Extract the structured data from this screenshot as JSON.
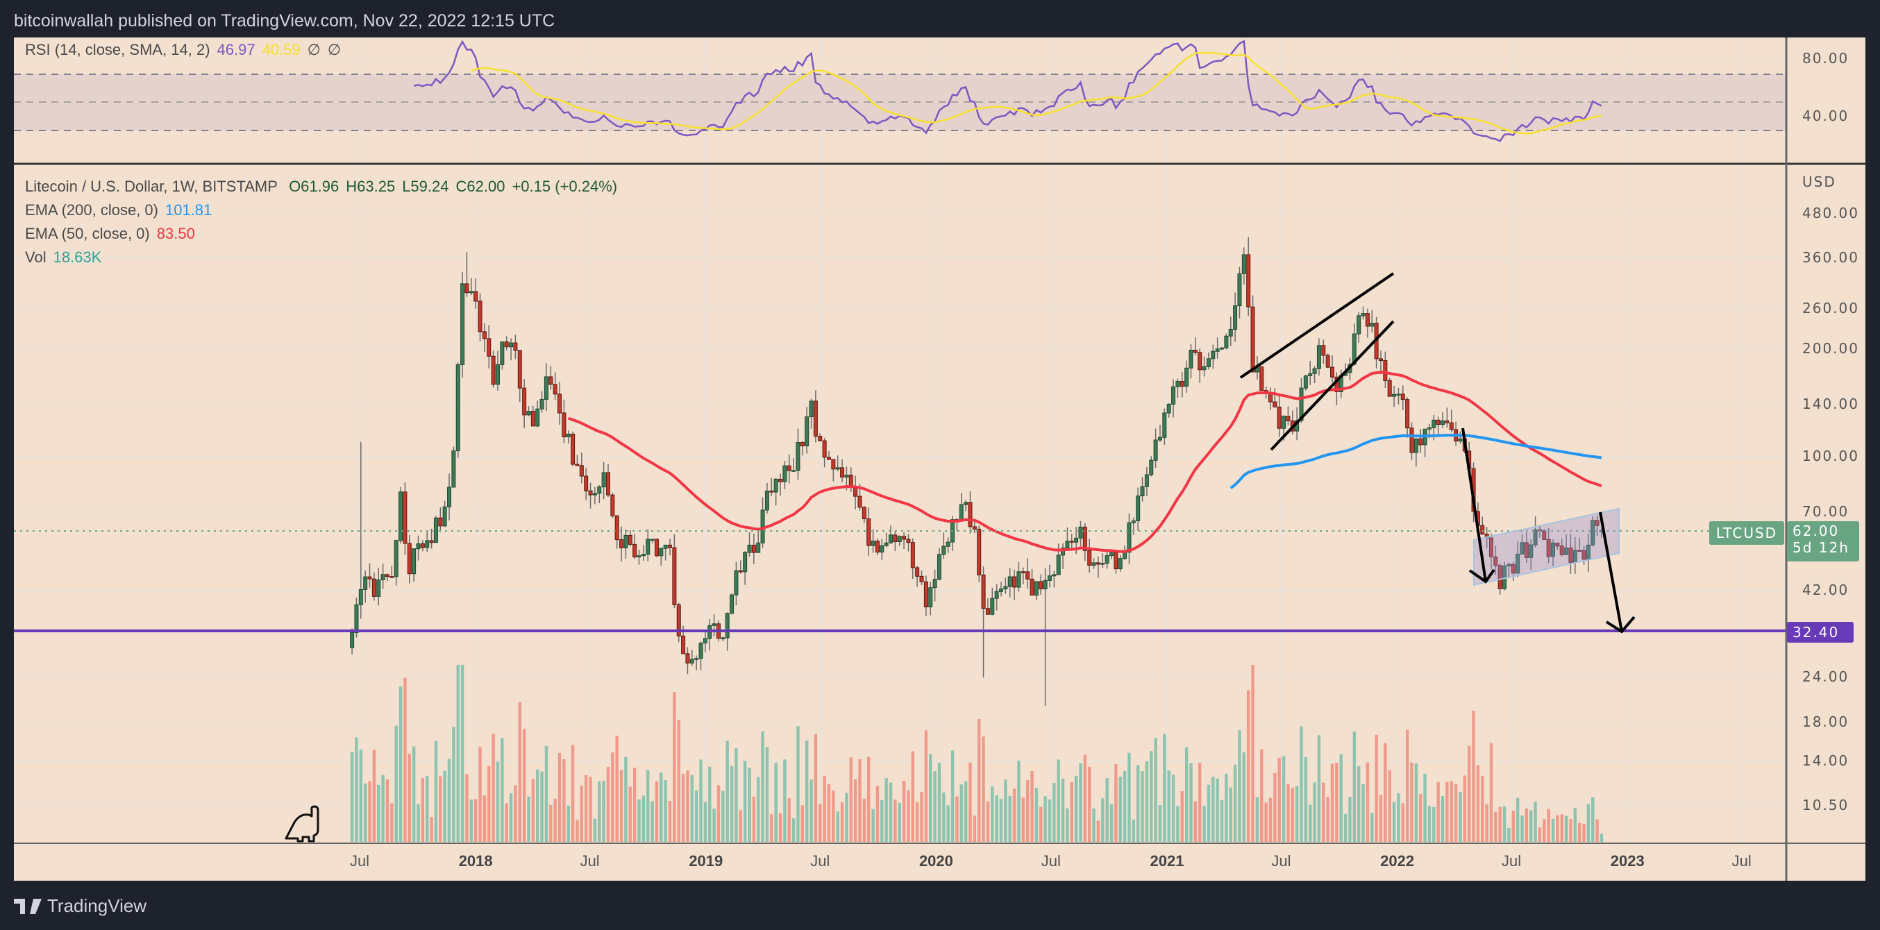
{
  "header": {
    "published": "bitcoinwallah published on TradingView.com, Nov 22, 2022 12:15 UTC"
  },
  "rsi_legend": {
    "label": "RSI (14, close, SMA, 14, 2)",
    "rsi": "46.97",
    "sma": "40.59",
    "na1": "∅",
    "na2": "∅"
  },
  "legend": {
    "symbol": "Litecoin / U.S. Dollar, 1W, BITSTAMP",
    "open": "O61.96",
    "high": "H63.25",
    "low": "L59.24",
    "close": "C62.00",
    "change": "+0.15 (+0.24%)",
    "ema200_label": "EMA (200, close, 0)",
    "ema200_value": "101.81",
    "ema50_label": "EMA (50, close, 0)",
    "ema50_value": "83.50",
    "vol_label": "Vol",
    "vol_value": "18.63K"
  },
  "rsi_axis": [
    "80.00",
    "40.00"
  ],
  "price_axis": {
    "currency": "USD",
    "labels": [
      "480.00",
      "360.00",
      "260.00",
      "200.00",
      "140.00",
      "100.00",
      "70.00",
      "42.00",
      "24.00",
      "18.00",
      "14.00",
      "10.50"
    ]
  },
  "badges": {
    "symbol": "LTCUSD",
    "price": "62.00",
    "countdown": "5d 12h",
    "support": "32.40"
  },
  "time_axis": [
    {
      "label": "Jul",
      "bold": false
    },
    {
      "label": "2018",
      "bold": true
    },
    {
      "label": "Jul",
      "bold": false
    },
    {
      "label": "2019",
      "bold": true
    },
    {
      "label": "Jul",
      "bold": false
    },
    {
      "label": "2020",
      "bold": true
    },
    {
      "label": "Jul",
      "bold": false
    },
    {
      "label": "2021",
      "bold": true
    },
    {
      "label": "Jul",
      "bold": false
    },
    {
      "label": "2022",
      "bold": true
    },
    {
      "label": "Jul",
      "bold": false
    },
    {
      "label": "2023",
      "bold": true
    },
    {
      "label": "Jul",
      "bold": false
    }
  ],
  "footer": {
    "brand": "TradingView"
  },
  "colors": {
    "up": "#3d7a55",
    "down": "#c4392b",
    "vol_up": "#8cc4b0",
    "vol_down": "#ef9a8a",
    "ema200": "#2196f3",
    "ema50": "#f23645",
    "rsi": "#7e57c2",
    "rsi_sma": "#f5e12e",
    "support": "#673ab7",
    "last": "#6aa583"
  },
  "chart_data": {
    "type": "candlestick",
    "title": "Litecoin / U.S. Dollar, 1W, BITSTAMP",
    "scale": "log",
    "ylim": [
      9,
      520
    ],
    "xlim": [
      "2017-05-01",
      "2023-08-01"
    ],
    "support_level": 32.4,
    "last_candle": {
      "open": 61.96,
      "high": 63.25,
      "low": 59.24,
      "close": 62.0
    },
    "close_anchors": [
      [
        "2017-06-19",
        30
      ],
      [
        "2017-07-03",
        45
      ],
      [
        "2017-07-24",
        42
      ],
      [
        "2017-08-21",
        48
      ],
      [
        "2017-09-04",
        75
      ],
      [
        "2017-09-18",
        50
      ],
      [
        "2017-10-16",
        58
      ],
      [
        "2017-11-13",
        70
      ],
      [
        "2017-11-27",
        100
      ],
      [
        "2017-12-11",
        320
      ],
      [
        "2017-12-25",
        280
      ],
      [
        "2018-01-08",
        240
      ],
      [
        "2018-01-29",
        160
      ],
      [
        "2018-02-12",
        220
      ],
      [
        "2018-03-05",
        190
      ],
      [
        "2018-03-19",
        140
      ],
      [
        "2018-04-02",
        120
      ],
      [
        "2018-04-23",
        165
      ],
      [
        "2018-05-21",
        120
      ],
      [
        "2018-06-25",
        80
      ],
      [
        "2018-07-23",
        85
      ],
      [
        "2018-08-13",
        58
      ],
      [
        "2018-09-10",
        55
      ],
      [
        "2018-10-01",
        58
      ],
      [
        "2018-11-05",
        52
      ],
      [
        "2018-11-19",
        32
      ],
      [
        "2018-12-10",
        26
      ],
      [
        "2019-01-07",
        33
      ],
      [
        "2019-01-28",
        31
      ],
      [
        "2019-02-18",
        45
      ],
      [
        "2019-03-25",
        60
      ],
      [
        "2019-04-08",
        80
      ],
      [
        "2019-05-13",
        90
      ],
      [
        "2019-06-17",
        135
      ],
      [
        "2019-07-08",
        100
      ],
      [
        "2019-08-05",
        90
      ],
      [
        "2019-09-02",
        70
      ],
      [
        "2019-09-23",
        55
      ],
      [
        "2019-11-04",
        62
      ],
      [
        "2019-12-16",
        40
      ],
      [
        "2020-01-13",
        55
      ],
      [
        "2020-02-10",
        75
      ],
      [
        "2020-03-02",
        60
      ],
      [
        "2020-03-16",
        36
      ],
      [
        "2020-04-13",
        42
      ],
      [
        "2020-05-11",
        45
      ],
      [
        "2020-06-15",
        43
      ],
      [
        "2020-07-27",
        55
      ],
      [
        "2020-08-17",
        60
      ],
      [
        "2020-09-07",
        48
      ],
      [
        "2020-10-19",
        52
      ],
      [
        "2020-11-23",
        80
      ],
      [
        "2020-12-21",
        120
      ],
      [
        "2021-01-11",
        150
      ],
      [
        "2021-02-15",
        200
      ],
      [
        "2021-03-01",
        175
      ],
      [
        "2021-03-29",
        200
      ],
      [
        "2021-04-19",
        260
      ],
      [
        "2021-05-03",
        390
      ],
      [
        "2021-05-17",
        180
      ],
      [
        "2021-06-21",
        130
      ],
      [
        "2021-07-19",
        120
      ],
      [
        "2021-08-16",
        180
      ],
      [
        "2021-09-06",
        200
      ],
      [
        "2021-09-27",
        150
      ],
      [
        "2021-10-18",
        180
      ],
      [
        "2021-11-08",
        270
      ],
      [
        "2021-11-29",
        200
      ],
      [
        "2021-12-20",
        150
      ],
      [
        "2022-01-10",
        145
      ],
      [
        "2022-01-24",
        110
      ],
      [
        "2022-02-14",
        115
      ],
      [
        "2022-03-28",
        125
      ],
      [
        "2022-04-18",
        100
      ],
      [
        "2022-05-09",
        65
      ],
      [
        "2022-06-13",
        45
      ],
      [
        "2022-07-11",
        52
      ],
      [
        "2022-08-08",
        60
      ],
      [
        "2022-09-05",
        55
      ],
      [
        "2022-10-03",
        53
      ],
      [
        "2022-10-24",
        52
      ],
      [
        "2022-11-07",
        68
      ],
      [
        "2022-11-21",
        62
      ]
    ],
    "wick_extremes": [
      {
        "date": "2017-07-03",
        "high": 110
      },
      {
        "date": "2017-12-18",
        "high": 375
      },
      {
        "date": "2020-03-16",
        "low": 24
      },
      {
        "date": "2020-06-22",
        "low": 20
      },
      {
        "date": "2021-05-10",
        "high": 413
      },
      {
        "date": "2022-06-13",
        "low": 41
      }
    ],
    "series": [
      {
        "name": "EMA (200, close, 0)",
        "last": 101.81
      },
      {
        "name": "EMA (50, close, 0)",
        "last": 83.5
      },
      {
        "name": "RSI (14)",
        "last": 46.97
      },
      {
        "name": "RSI SMA (14)",
        "last": 40.59
      },
      {
        "name": "Volume",
        "last": "18.63K"
      }
    ],
    "annotations": [
      "rising wedge (2021)",
      "breakdown arrow (2022)",
      "ascending parallel channel (2022)",
      "projected drop arrow to 32.40"
    ]
  }
}
